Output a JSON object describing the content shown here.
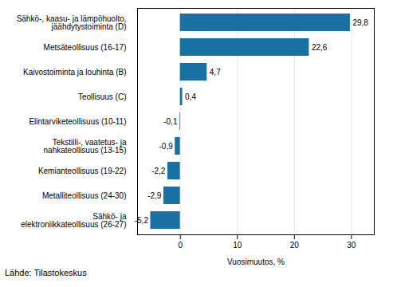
{
  "chart_data": {
    "type": "bar",
    "orientation": "horizontal",
    "categories": [
      "Sähkö-, kaasu- ja lämpöhuolto,\njäähdytystoiminta (D)",
      "Metsäteollisuus (16-17)",
      "Kaivostoiminta ja louhinta (B)",
      "Teollisuus (C)",
      "Elintarviketeollisuus (10-11)",
      "Tekstiili-, vaatetus- ja\nnahkateollisuus (13-15)",
      "Kemianteollisuus (19-22)",
      "Metalliteollisuus (24-30)",
      "Sähkö- ja\nelektroniikkateollisuus (26-27)"
    ],
    "values": [
      29.8,
      22.6,
      4.7,
      0.4,
      -0.1,
      -0.9,
      -2.2,
      -2.9,
      -5.2
    ],
    "value_labels": [
      "29,8",
      "22,6",
      "4,7",
      "0,4",
      "-0,1",
      "-0,9",
      "-2,2",
      "-2,9",
      "-5,2"
    ],
    "data_labels": true,
    "color": "#1a6fa3",
    "xlabel": "Vuosimuutos, %",
    "xlim": [
      -7.5,
      34
    ],
    "xticks": [
      0,
      10,
      20,
      30
    ],
    "grid": true,
    "source": "Lähde: Tilastokeskus"
  }
}
